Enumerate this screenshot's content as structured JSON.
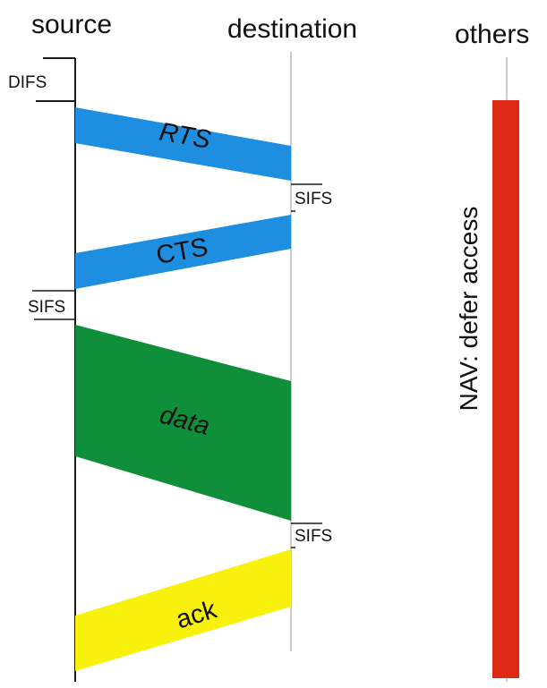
{
  "columns": {
    "source": "source",
    "destination": "destination",
    "others": "others"
  },
  "intervals": {
    "difs": "DIFS",
    "sifs_after_rts": "SIFS",
    "sifs_after_cts": "SIFS",
    "sifs_after_data": "SIFS"
  },
  "frames": {
    "rts": "RTS",
    "cts": "CTS",
    "data": "data",
    "ack": "ack"
  },
  "nav": {
    "label": "NAV: defer access"
  },
  "colors": {
    "control_frame": "#1e8ee0",
    "data_frame": "#0f8f3a",
    "ack_frame": "#f7f10c",
    "nav_bar": "#de2a14",
    "timeline_source": "#1a1a1a",
    "timeline_other": "#b8b8b8"
  }
}
